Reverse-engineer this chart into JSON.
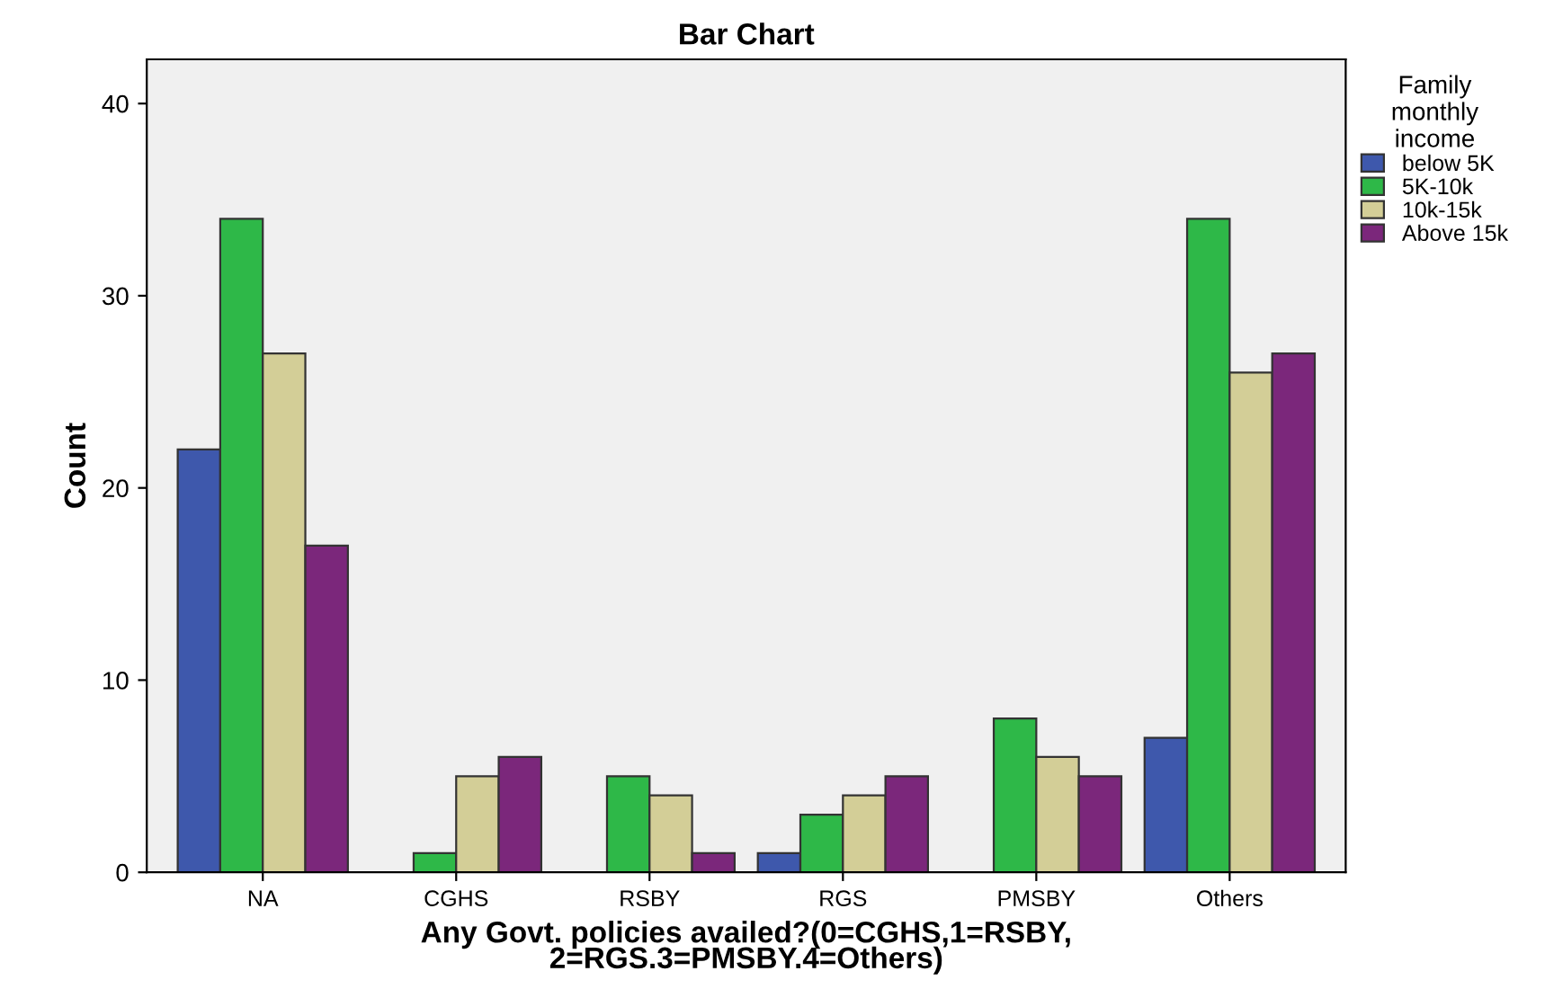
{
  "chart_data": {
    "type": "bar",
    "title": "Bar Chart",
    "xlabel": "Any Govt. policies availed?(0=CGHS,1=RSBY,\n2=RGS.3=PMSBY.4=Others)",
    "ylabel": "Count",
    "legend_title": "Family\nmonthly\nincome",
    "categories": [
      "NA",
      "CGHS",
      "RSBY",
      "RGS",
      "PMSBY",
      "Others"
    ],
    "series": [
      {
        "name": "below 5K",
        "color": "#3e58ac",
        "values": [
          22,
          null,
          null,
          1,
          null,
          7
        ]
      },
      {
        "name": "5K-10k",
        "color": "#2eb848",
        "values": [
          34,
          1,
          5,
          3,
          8,
          34
        ]
      },
      {
        "name": "10k-15k",
        "color": "#d3ce97",
        "values": [
          27,
          5,
          4,
          4,
          6,
          26
        ]
      },
      {
        "name": "Above 15k",
        "color": "#7b277b",
        "values": [
          17,
          6,
          1,
          5,
          5,
          27
        ]
      }
    ],
    "ylim": [
      0,
      42.3
    ],
    "yticks": [
      0,
      10,
      20,
      30,
      40
    ],
    "grid": false,
    "legend": "right"
  }
}
